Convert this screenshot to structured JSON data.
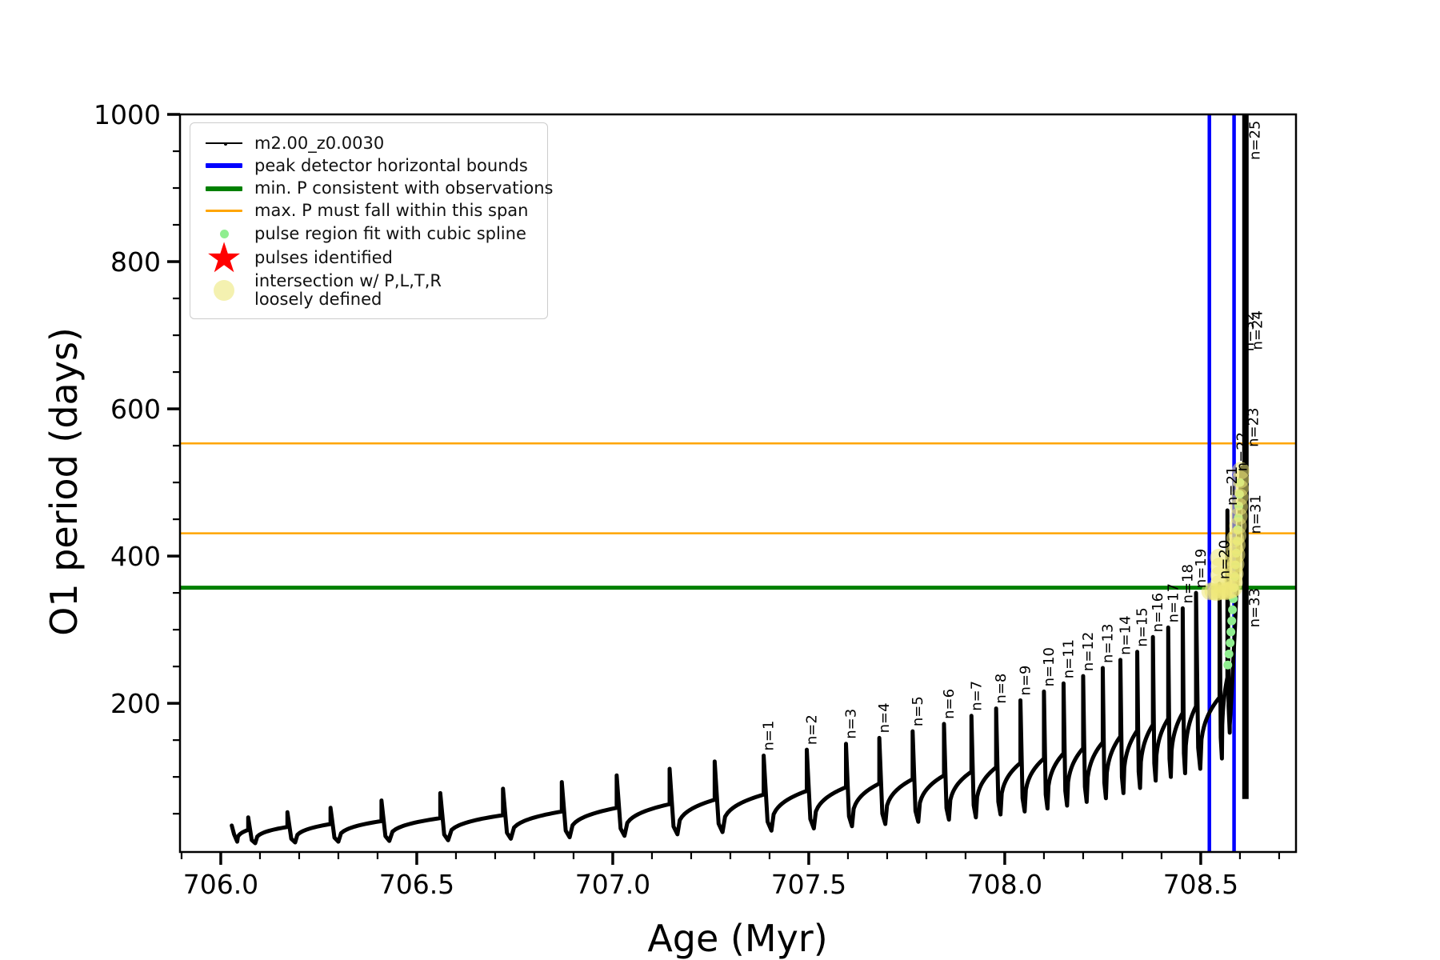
{
  "figure": {
    "bg": "#ffffff"
  },
  "axes": {
    "xlabel": "Age (Myr)",
    "ylabel": "O1 period (days)"
  },
  "legend": {
    "items": [
      {
        "label": "m2.00_z0.0030",
        "swatch": "line-dot",
        "color": "#000000"
      },
      {
        "label": "peak detector horizontal bounds",
        "swatch": "thick-line",
        "color": "#0000ff"
      },
      {
        "label": "min. P consistent with observations",
        "swatch": "thick-line",
        "color": "#008000"
      },
      {
        "label": "max. P must fall within this span",
        "swatch": "line",
        "color": "#ffa500"
      },
      {
        "label": "pulse region fit with cubic spline",
        "swatch": "small-dot",
        "color": "#90ee90"
      },
      {
        "label": "pulses identified",
        "swatch": "star",
        "color": "#ff0000"
      },
      {
        "label": "intersection w/ P,L,T,R",
        "label2": "loosely defined",
        "swatch": "big-dot",
        "color": "rgba(240,236,150,0.75)"
      }
    ]
  },
  "chart_data": {
    "type": "line",
    "title": "",
    "xlabel": "Age (Myr)",
    "ylabel": "O1 period (days)",
    "xlim": [
      705.896,
      708.743
    ],
    "ylim": [
      -2,
      1000
    ],
    "xticks": [
      706.0,
      706.5,
      707.0,
      707.5,
      708.0,
      708.5
    ],
    "xtick_labels": [
      "706.0",
      "706.5",
      "707.0",
      "707.5",
      "708.0",
      "708.5"
    ],
    "x_minor_step": 0.1,
    "yticks": [
      200,
      400,
      600,
      800,
      1000
    ],
    "ytick_labels": [
      "200",
      "400",
      "600",
      "800",
      "1000"
    ],
    "y_minor_step": 50,
    "grid": false,
    "legend_position": "upper left",
    "series_name": "m2.00_z0.0030",
    "hlines": [
      {
        "name": "min_P_consistent_with_observations",
        "y": 357,
        "color": "#008000",
        "width": 5
      },
      {
        "name": "max_P_span_upper",
        "y": 553,
        "color": "#ffa500",
        "width": 2.5
      },
      {
        "name": "max_P_span_lower",
        "y": 431,
        "color": "#ffa500",
        "width": 2.5
      }
    ],
    "vlines": [
      {
        "name": "peak_detector_bound_left",
        "x": 708.522,
        "color": "#0000ff",
        "width": 4.5
      },
      {
        "name": "peak_detector_bound_right",
        "x": 708.585,
        "color": "#0000ff",
        "width": 4.5
      }
    ],
    "curve_start": [
      [
        706.028,
        34
      ],
      [
        706.034,
        22
      ],
      [
        706.042,
        12
      ]
    ],
    "pulses": [
      {
        "x": 706.07,
        "base": 28,
        "peak": 45,
        "dip": 10
      },
      {
        "x": 706.17,
        "base": 32,
        "peak": 52,
        "dip": 11
      },
      {
        "x": 706.28,
        "base": 36,
        "peak": 58,
        "dip": 12
      },
      {
        "x": 706.41,
        "base": 40,
        "peak": 68,
        "dip": 13
      },
      {
        "x": 706.56,
        "base": 44,
        "peak": 78,
        "dip": 14
      },
      {
        "x": 706.72,
        "base": 48,
        "peak": 84,
        "dip": 16
      },
      {
        "x": 706.87,
        "base": 53,
        "peak": 93,
        "dip": 18
      },
      {
        "x": 707.01,
        "base": 58,
        "peak": 102,
        "dip": 20
      },
      {
        "x": 707.145,
        "base": 63,
        "peak": 111,
        "dip": 22
      },
      {
        "x": 707.26,
        "base": 69,
        "peak": 121,
        "dip": 25
      },
      {
        "x": 707.385,
        "base": 76,
        "peak": 129,
        "dip": 27,
        "label": "n=1"
      },
      {
        "x": 707.495,
        "base": 81,
        "peak": 137,
        "dip": 30,
        "label": "n=2"
      },
      {
        "x": 707.595,
        "base": 86,
        "peak": 145,
        "dip": 33,
        "label": "n=3"
      },
      {
        "x": 707.68,
        "base": 91,
        "peak": 153,
        "dip": 36,
        "label": "n=4"
      },
      {
        "x": 707.765,
        "base": 97,
        "peak": 162,
        "dip": 39,
        "label": "n=5"
      },
      {
        "x": 707.845,
        "base": 102,
        "peak": 172,
        "dip": 42,
        "label": "n=6"
      },
      {
        "x": 707.915,
        "base": 107,
        "peak": 183,
        "dip": 45,
        "label": "n=7"
      },
      {
        "x": 707.978,
        "base": 113,
        "peak": 193,
        "dip": 49,
        "label": "n=8"
      },
      {
        "x": 708.04,
        "base": 119,
        "peak": 204,
        "dip": 53,
        "label": "n=9"
      },
      {
        "x": 708.1,
        "base": 125,
        "peak": 216,
        "dip": 57,
        "label": "n=10"
      },
      {
        "x": 708.15,
        "base": 132,
        "peak": 227,
        "dip": 61,
        "label": "n=11"
      },
      {
        "x": 708.2,
        "base": 139,
        "peak": 237,
        "dip": 66,
        "label": "n=12"
      },
      {
        "x": 708.25,
        "base": 147,
        "peak": 248,
        "dip": 71,
        "label": "n=13"
      },
      {
        "x": 708.295,
        "base": 155,
        "peak": 259,
        "dip": 78,
        "label": "n=14"
      },
      {
        "x": 708.338,
        "base": 163,
        "peak": 270,
        "dip": 85,
        "label": "n=15"
      },
      {
        "x": 708.378,
        "base": 171,
        "peak": 290,
        "dip": 95,
        "label": "n=16"
      },
      {
        "x": 708.417,
        "base": 179,
        "peak": 303,
        "dip": 100,
        "label": "n=17"
      },
      {
        "x": 708.454,
        "base": 187,
        "peak": 329,
        "dip": 105,
        "label": "n=18"
      },
      {
        "x": 708.488,
        "base": 196,
        "peak": 350,
        "dip": 111,
        "label": "n=19"
      },
      {
        "x": 708.548,
        "base": 208,
        "peak": 362,
        "dip": 125,
        "label": "n=20"
      },
      {
        "x": 708.568,
        "base": 235,
        "peak": 462,
        "dip": 160,
        "label": "n=21"
      }
    ],
    "final_rise": [
      [
        708.574,
        170
      ],
      [
        708.579,
        215
      ],
      [
        708.583,
        258
      ],
      [
        708.587,
        300
      ],
      [
        708.59,
        340
      ],
      [
        708.594,
        385
      ],
      [
        708.597,
        428
      ],
      [
        708.6,
        470
      ],
      [
        708.604,
        520
      ]
    ],
    "runaway": {
      "x": 708.614,
      "v_min": 70,
      "v_max": 1000,
      "width": 8
    },
    "extra_labels": [
      {
        "x": 708.599,
        "v": 515,
        "text": "n=22"
      },
      {
        "x": 708.628,
        "v": 548,
        "text": "n=23"
      },
      {
        "x": 708.638,
        "v": 680,
        "text": "n=24"
      },
      {
        "x": 708.632,
        "v": 938,
        "text": "n=25"
      },
      {
        "x": 708.634,
        "v": 430,
        "text": "n=31"
      },
      {
        "x": 708.616,
        "v": 678,
        "text": "n=32"
      },
      {
        "x": 708.631,
        "v": 303,
        "text": "n=33"
      }
    ],
    "intersection_markers": [
      [
        708.524,
        352
      ],
      [
        708.532,
        352
      ],
      [
        708.54,
        351
      ],
      [
        708.548,
        352
      ],
      [
        708.556,
        353
      ],
      [
        708.563,
        352
      ],
      [
        708.57,
        353
      ],
      [
        708.577,
        354
      ],
      [
        708.583,
        356
      ],
      [
        708.546,
        362
      ],
      [
        708.547,
        374
      ],
      [
        708.548,
        386
      ],
      [
        708.546,
        398
      ],
      [
        708.581,
        368
      ],
      [
        708.583,
        382
      ],
      [
        708.584,
        396
      ],
      [
        708.586,
        410
      ],
      [
        708.588,
        424
      ],
      [
        708.585,
        364
      ],
      [
        708.587,
        376
      ],
      [
        708.589,
        389
      ],
      [
        708.591,
        402
      ],
      [
        708.592,
        415
      ],
      [
        708.594,
        428
      ],
      [
        708.595,
        441
      ],
      [
        708.597,
        454
      ],
      [
        708.598,
        467
      ],
      [
        708.599,
        480
      ],
      [
        708.6,
        492
      ],
      [
        708.601,
        504
      ],
      [
        708.602,
        516
      ]
    ],
    "pulse_fit_markers": [
      [
        708.569,
        252
      ],
      [
        708.572,
        267
      ],
      [
        708.575,
        282
      ],
      [
        708.577,
        297
      ],
      [
        708.579,
        312
      ],
      [
        708.581,
        327
      ],
      [
        708.583,
        342
      ],
      [
        708.585,
        357
      ],
      [
        708.587,
        372
      ],
      [
        708.589,
        388
      ],
      [
        708.591,
        404
      ],
      [
        708.593,
        420
      ],
      [
        708.594,
        436
      ],
      [
        708.596,
        452
      ],
      [
        708.597,
        468
      ],
      [
        708.599,
        484
      ],
      [
        708.6,
        500
      ]
    ],
    "style": {
      "series_color": "#000000",
      "series_width": 5,
      "intersection_color": "rgba(238,232,120,0.55)",
      "intersection_radius": 11,
      "pulse_fit_color": "#90ee90",
      "pulse_fit_radius": 5.5,
      "tick_font": 33,
      "pulse_label_font": 18
    }
  }
}
